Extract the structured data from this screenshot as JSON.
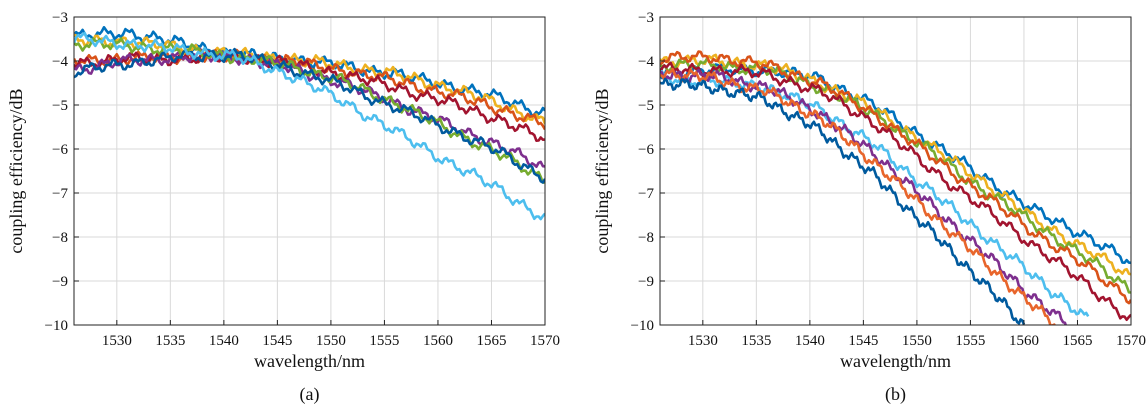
{
  "chart_data": [
    {
      "type": "line",
      "panel": "a",
      "caption": "(a)",
      "xlabel": "wavelength/nm",
      "ylabel": "coupling efficiency/dB",
      "xlim": [
        1526,
        1570
      ],
      "ylim": [
        -10,
        -3
      ],
      "xticks": [
        1530,
        1535,
        1540,
        1545,
        1550,
        1555,
        1560,
        1565,
        1570
      ],
      "yticks": [
        -3,
        -4,
        -5,
        -6,
        -7,
        -8,
        -9,
        -10
      ],
      "grid": true,
      "series": [
        {
          "color": "#0072BD",
          "x": [
            1526,
            1531,
            1536,
            1541,
            1546,
            1551,
            1556,
            1561,
            1566,
            1570
          ],
          "y": [
            -3.45,
            -3.35,
            -3.6,
            -3.85,
            -3.95,
            -4.1,
            -4.3,
            -4.55,
            -4.85,
            -5.2
          ]
        },
        {
          "color": "#EDB120",
          "x": [
            1526,
            1531,
            1536,
            1541,
            1546,
            1551,
            1556,
            1561,
            1566,
            1570
          ],
          "y": [
            -3.55,
            -3.55,
            -3.7,
            -3.85,
            -3.95,
            -4.1,
            -4.3,
            -4.6,
            -5.0,
            -5.4
          ]
        },
        {
          "color": "#D95319",
          "x": [
            1526,
            1531,
            1536,
            1541,
            1546,
            1551,
            1556,
            1561,
            1566,
            1570
          ],
          "y": [
            -4.0,
            -3.95,
            -3.9,
            -3.9,
            -4.0,
            -4.2,
            -4.45,
            -4.75,
            -5.1,
            -5.45
          ]
        },
        {
          "color": "#A2142F",
          "x": [
            1526,
            1531,
            1536,
            1541,
            1546,
            1551,
            1556,
            1561,
            1566,
            1570
          ],
          "y": [
            -4.05,
            -3.95,
            -3.95,
            -3.9,
            -4.05,
            -4.3,
            -4.6,
            -4.95,
            -5.35,
            -5.8
          ]
        },
        {
          "color": "#7E2F8E",
          "x": [
            1526,
            1531,
            1536,
            1541,
            1546,
            1551,
            1556,
            1561,
            1566,
            1570
          ],
          "y": [
            -4.2,
            -4.0,
            -3.9,
            -3.9,
            -4.15,
            -4.5,
            -4.95,
            -5.45,
            -5.95,
            -6.45
          ]
        },
        {
          "color": "#77AC30",
          "x": [
            1526,
            1531,
            1536,
            1541,
            1546,
            1551,
            1556,
            1561,
            1566,
            1570
          ],
          "y": [
            -3.6,
            -3.65,
            -3.75,
            -3.9,
            -4.1,
            -4.45,
            -4.95,
            -5.55,
            -6.15,
            -6.7
          ]
        },
        {
          "color": "#005A9E",
          "x": [
            1526,
            1531,
            1536,
            1541,
            1546,
            1551,
            1556,
            1561,
            1566,
            1570
          ],
          "y": [
            -4.25,
            -4.05,
            -3.9,
            -3.85,
            -4.15,
            -4.55,
            -5.05,
            -5.55,
            -6.1,
            -6.65
          ]
        },
        {
          "color": "#4DBEEE",
          "x": [
            1526,
            1531,
            1536,
            1541,
            1546,
            1551,
            1556,
            1561,
            1566,
            1570
          ],
          "y": [
            -3.5,
            -3.6,
            -3.75,
            -3.9,
            -4.3,
            -4.9,
            -5.6,
            -6.3,
            -6.95,
            -7.6
          ]
        }
      ]
    },
    {
      "type": "line",
      "panel": "b",
      "caption": "(b)",
      "xlabel": "wavelength/nm",
      "ylabel": "coupling efficiency/dB",
      "xlim": [
        1526,
        1570
      ],
      "ylim": [
        -10,
        -3
      ],
      "xticks": [
        1530,
        1535,
        1540,
        1545,
        1550,
        1555,
        1560,
        1565,
        1570
      ],
      "yticks": [
        -3,
        -4,
        -5,
        -6,
        -7,
        -8,
        -9,
        -10
      ],
      "grid": true,
      "series": [
        {
          "color": "#0072BD",
          "x": [
            1526,
            1531,
            1536,
            1541,
            1546,
            1551,
            1556,
            1561,
            1566,
            1570
          ],
          "y": [
            -4.3,
            -4.2,
            -4.2,
            -4.4,
            -5.0,
            -5.8,
            -6.6,
            -7.4,
            -8.0,
            -8.6
          ]
        },
        {
          "color": "#EDB120",
          "x": [
            1526,
            1531,
            1536,
            1541,
            1546,
            1551,
            1556,
            1561,
            1566,
            1570
          ],
          "y": [
            -4.0,
            -4.0,
            -4.1,
            -4.5,
            -5.1,
            -5.9,
            -6.7,
            -7.6,
            -8.3,
            -8.9
          ]
        },
        {
          "color": "#77AC30",
          "x": [
            1526,
            1531,
            1536,
            1541,
            1546,
            1551,
            1556,
            1561,
            1566,
            1570
          ],
          "y": [
            -4.1,
            -4.1,
            -4.2,
            -4.6,
            -5.2,
            -6.0,
            -6.9,
            -7.7,
            -8.5,
            -9.2
          ]
        },
        {
          "color": "#D95319",
          "x": [
            1526,
            1531,
            1536,
            1541,
            1546,
            1551,
            1556,
            1561,
            1566,
            1570
          ],
          "y": [
            -3.95,
            -3.9,
            -4.1,
            -4.5,
            -5.2,
            -6.1,
            -7.0,
            -7.9,
            -8.7,
            -9.4
          ]
        },
        {
          "color": "#A2142F",
          "x": [
            1526,
            1531,
            1536,
            1541,
            1546,
            1551,
            1556,
            1561,
            1566,
            1570
          ],
          "y": [
            -4.2,
            -4.2,
            -4.3,
            -4.7,
            -5.4,
            -6.4,
            -7.3,
            -8.2,
            -9.1,
            -9.9
          ]
        },
        {
          "color": "#4DBEEE",
          "x": [
            1526,
            1531,
            1536,
            1541,
            1546,
            1551,
            1556,
            1561,
            1566
          ],
          "y": [
            -4.4,
            -4.45,
            -4.6,
            -5.1,
            -5.9,
            -6.9,
            -7.9,
            -8.9,
            -9.9
          ]
        },
        {
          "color": "#7E2F8E",
          "x": [
            1526,
            1531,
            1536,
            1541,
            1546,
            1551,
            1556,
            1561,
            1564
          ],
          "y": [
            -4.3,
            -4.35,
            -4.6,
            -5.2,
            -6.1,
            -7.2,
            -8.3,
            -9.4,
            -10.0
          ]
        },
        {
          "color": "#E8652B",
          "x": [
            1526,
            1531,
            1536,
            1541,
            1546,
            1551,
            1556,
            1561,
            1563
          ],
          "y": [
            -4.25,
            -4.4,
            -4.7,
            -5.3,
            -6.3,
            -7.4,
            -8.5,
            -9.6,
            -10.0
          ]
        },
        {
          "color": "#005A9E",
          "x": [
            1526,
            1531,
            1536,
            1541,
            1546,
            1551,
            1556,
            1560
          ],
          "y": [
            -4.5,
            -4.6,
            -4.9,
            -5.6,
            -6.6,
            -7.8,
            -9.0,
            -10.0
          ]
        }
      ]
    }
  ]
}
